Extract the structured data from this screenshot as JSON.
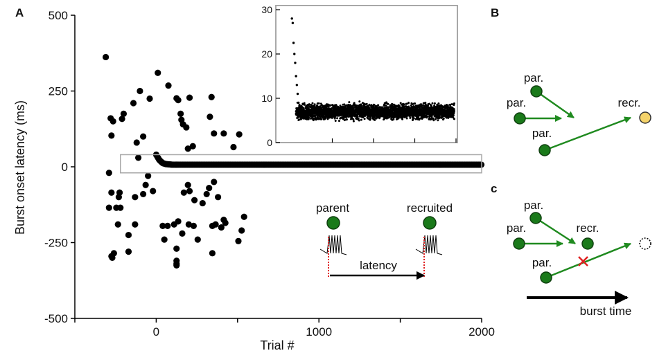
{
  "panels": {
    "A": "A",
    "B": "B",
    "c": "c"
  },
  "colors": {
    "dot": "#000000",
    "neuron_green": "#1a7a1a",
    "neuron_green_stroke": "#0f3f0f",
    "arrow_green": "#1f8a1f",
    "recruited_yellow": "#f5d36a",
    "inset_frame": "#a8a8a8",
    "threshold_red": "#e02020"
  },
  "chart_data": [
    {
      "type": "scatter",
      "title": "",
      "xlabel": "Trial #",
      "ylabel": "Burst onset latency (ms)",
      "xlim": [
        -500,
        2000
      ],
      "ylim": [
        -500,
        500
      ],
      "x_ticks": [
        0,
        1000,
        2000
      ],
      "x_minor_ticks": [
        -500,
        500,
        1500
      ],
      "y_ticks": [
        -500,
        -250,
        0,
        250,
        500
      ],
      "y_tick_labels": [
        "-500",
        "-250",
        "0",
        "250",
        "500"
      ],
      "grid": false,
      "scattered_points": {
        "x": [
          -310,
          -280,
          -275,
          -265,
          -210,
          -140,
          -230,
          -200,
          -120,
          -80,
          -100,
          -40,
          10,
          75,
          125,
          135,
          155,
          165,
          185,
          205,
          150,
          195,
          225,
          330,
          340,
          355,
          415,
          475,
          510,
          -110,
          -290,
          -275,
          -225,
          -245,
          -220,
          -130,
          -80,
          -65,
          -50,
          -170,
          -20,
          50,
          110,
          135,
          170,
          195,
          205,
          235,
          285,
          310,
          325,
          355,
          380,
          415,
          425,
          540,
          525,
          -290,
          -260,
          -275,
          -235,
          -170,
          -130,
          40,
          70,
          125,
          125,
          125,
          160,
          200,
          230,
          255,
          345,
          345,
          365,
          400,
          505,
          -270,
          125
        ],
        "y": [
          362,
          160,
          103,
          150,
          158,
          210,
          -100,
          175,
          80,
          100,
          250,
          225,
          310,
          268,
          226,
          220,
          155,
          140,
          130,
          228,
          175,
          60,
          68,
          165,
          230,
          110,
          110,
          65,
          107,
          30,
          -20,
          -85,
          -85,
          -135,
          -135,
          -100,
          -90,
          -60,
          -30,
          -225,
          -80,
          -240,
          -190,
          -180,
          -85,
          -60,
          -80,
          -110,
          -120,
          -90,
          -70,
          -50,
          -100,
          -175,
          -185,
          -165,
          -210,
          -135,
          -285,
          -295,
          -190,
          -280,
          -190,
          -195,
          -195,
          -310,
          -325,
          -270,
          -220,
          -190,
          -195,
          -240,
          -195,
          -285,
          -190,
          -200,
          -245,
          -300,
          -320
        ]
      },
      "converged_points": {
        "x": [
          0,
          20,
          40,
          60,
          80,
          100,
          150,
          200,
          300,
          400,
          500,
          600,
          700,
          800,
          900,
          1000,
          1100,
          1200,
          1300,
          1400,
          1500,
          1600,
          1700,
          1800,
          1900,
          2000
        ],
        "y": [
          40,
          22,
          12,
          9,
          8,
          7,
          7,
          7,
          7,
          7,
          7,
          7,
          7,
          7,
          7,
          7,
          7,
          7,
          7,
          7,
          7,
          7,
          7,
          7,
          7,
          7
        ]
      },
      "zoom_region": {
        "x": [
          -220,
          2000
        ],
        "y": [
          -20,
          40
        ]
      }
    },
    {
      "type": "scatter",
      "title": "",
      "xlabel": "",
      "ylabel": "",
      "xlim": [
        0,
        2000
      ],
      "ylim": [
        0,
        30
      ],
      "y_ticks": [
        0,
        10,
        20,
        30
      ],
      "y_tick_labels": [
        "0",
        "10",
        "20",
        "30"
      ],
      "x_minor_ticks": [
        500,
        1000,
        1500,
        2000
      ],
      "grid": false,
      "early_points": {
        "x": [
          10,
          20,
          30,
          40,
          50,
          60,
          70,
          80,
          90,
          100,
          110,
          120
        ],
        "y": [
          28,
          27,
          22.5,
          20,
          18,
          15,
          13,
          11,
          9,
          8,
          7.5,
          7
        ]
      },
      "band": {
        "center": 7,
        "spread": 1.6,
        "x_start": 60,
        "x_end": 1980
      }
    }
  ],
  "diagram_A": {
    "parent_label": "parent",
    "recruited_label": "recruited",
    "latency_label": "latency"
  },
  "diagram_B": {
    "par_label_1": "par.",
    "par_label_2": "par.",
    "par_label_3": "par.",
    "recr_label": "recr."
  },
  "diagram_c": {
    "par_label_1": "par.",
    "par_label_2": "par.",
    "par_label_3": "par.",
    "recr_label": "recr.",
    "burst_time_label": "burst time"
  }
}
